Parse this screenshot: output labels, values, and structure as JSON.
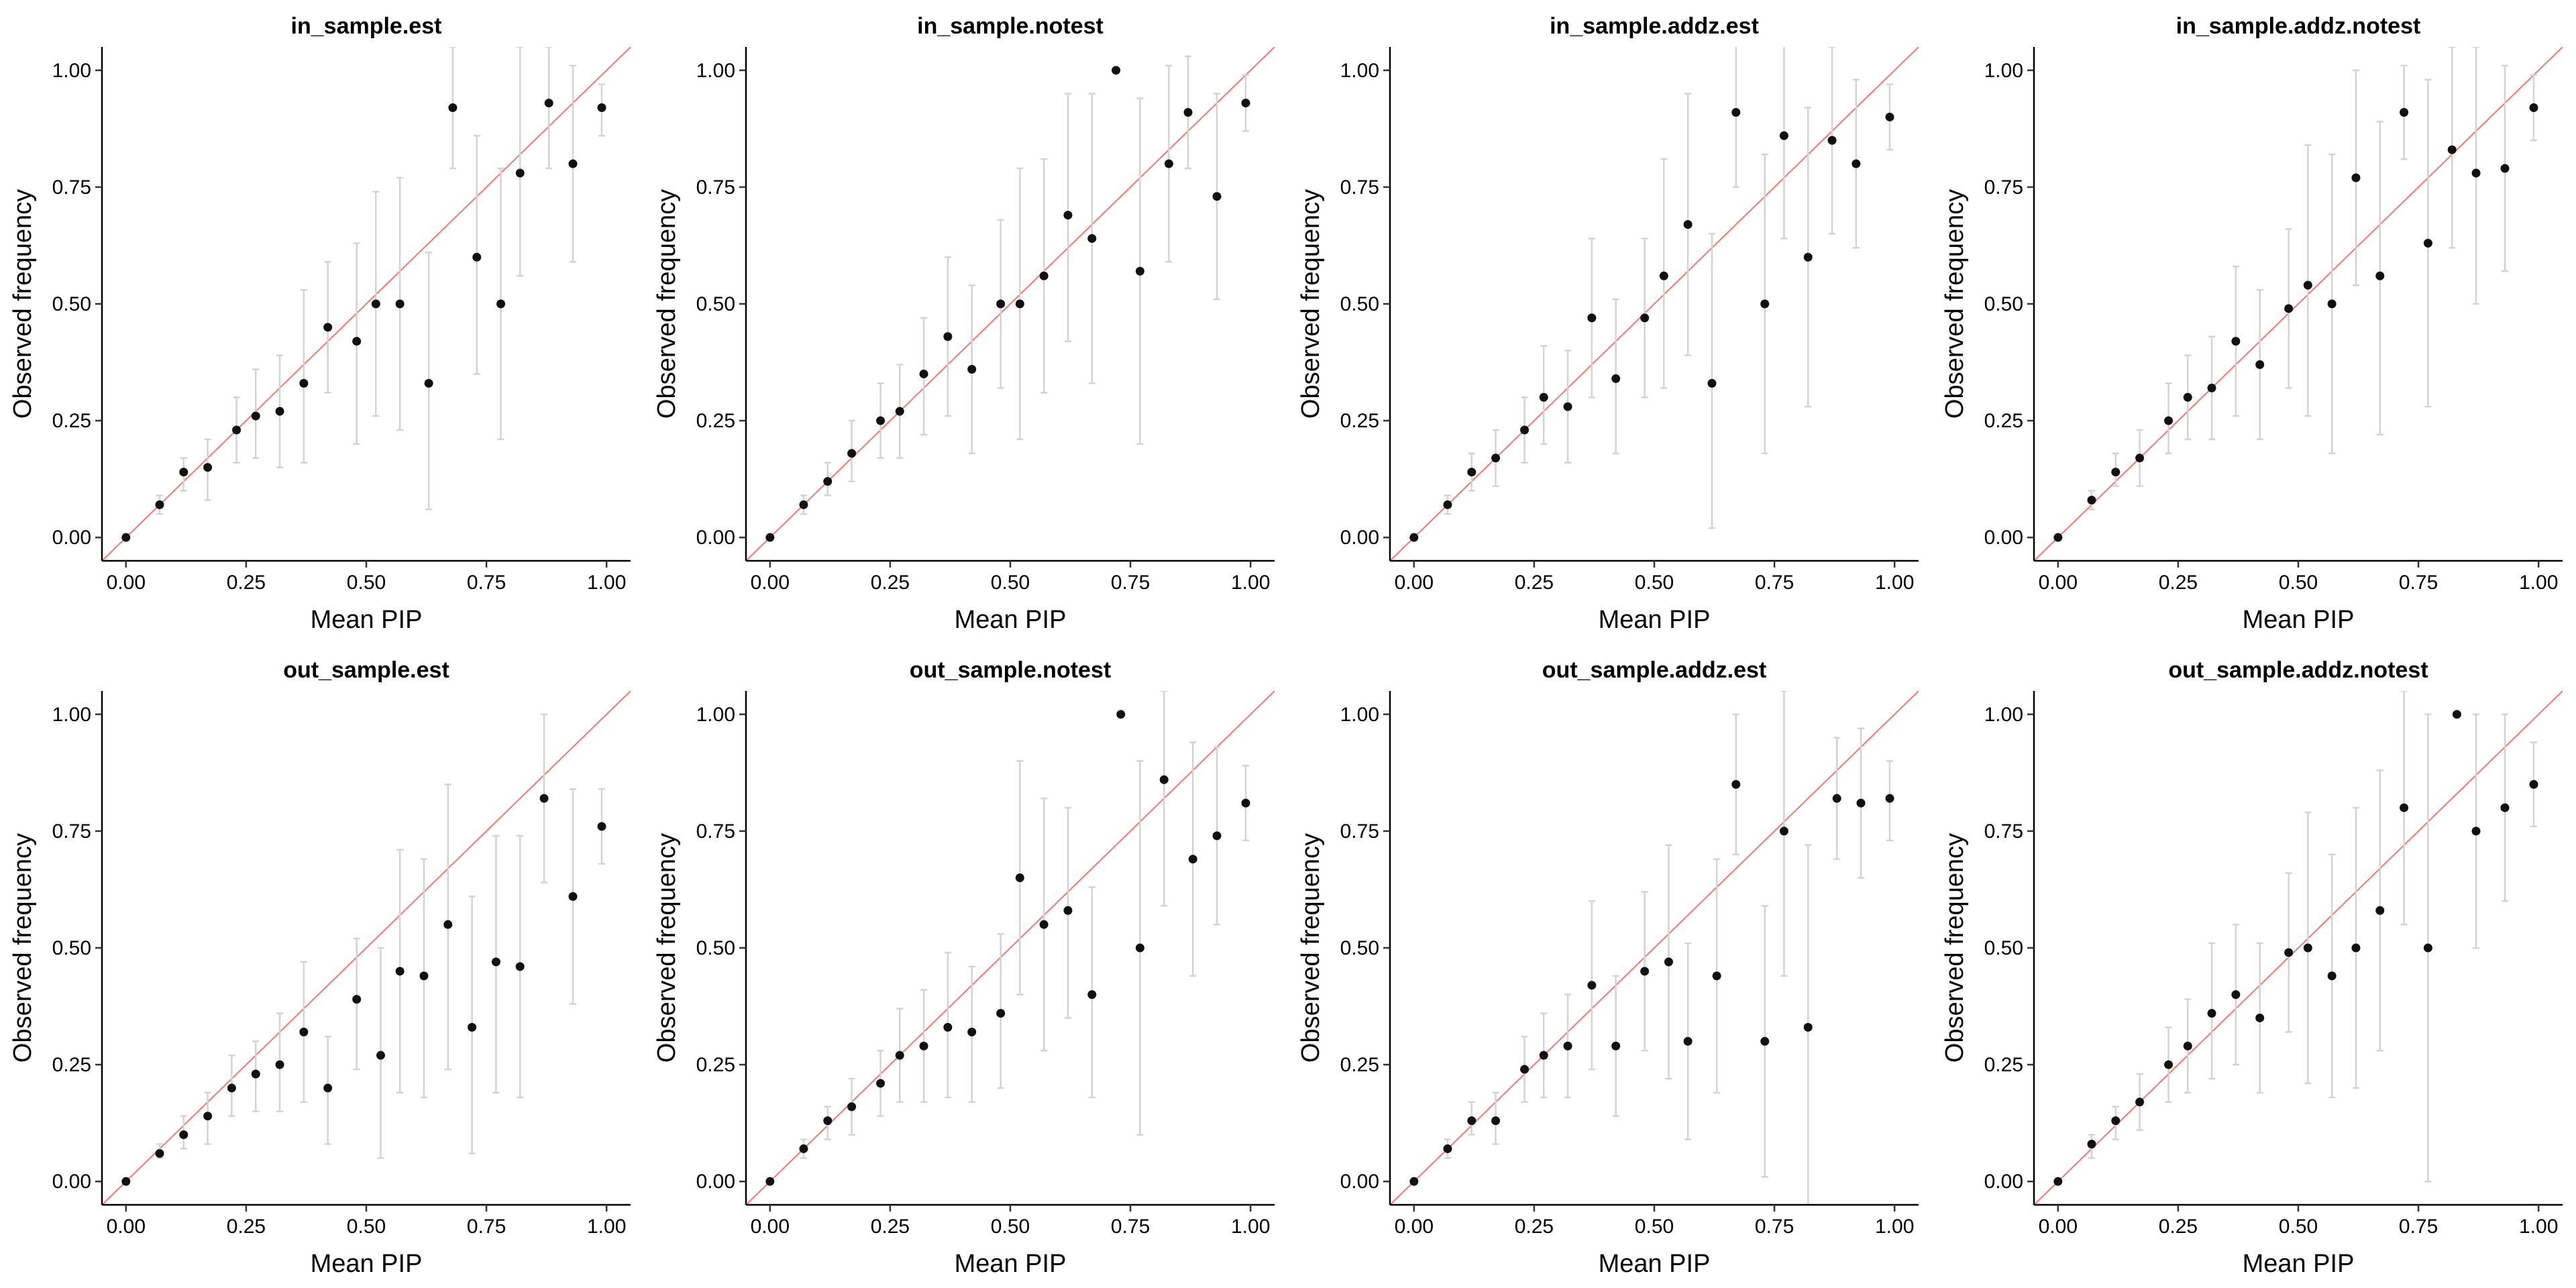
{
  "figure": {
    "xlabel": "Mean PIP",
    "ylabel": "Observed frequency",
    "x_ticks": [
      "0.00",
      "0.25",
      "0.50",
      "0.75",
      "1.00"
    ],
    "y_ticks": [
      "0.00",
      "0.25",
      "0.50",
      "0.75",
      "1.00"
    ],
    "colors": {
      "reference_line": "#f8766d",
      "point": "#111111",
      "errorbar": "#d3d3d3",
      "axis": "#000000"
    }
  },
  "chart_data": [
    {
      "type": "scatter",
      "title": "in_sample.est",
      "xlabel": "Mean PIP",
      "ylabel": "Observed frequency",
      "xlim": [
        -0.05,
        1.05
      ],
      "ylim": [
        -0.05,
        1.05
      ],
      "reference_line": "y = x",
      "x": [
        0.0,
        0.07,
        0.12,
        0.17,
        0.23,
        0.27,
        0.32,
        0.37,
        0.42,
        0.48,
        0.52,
        0.57,
        0.63,
        0.68,
        0.73,
        0.78,
        0.82,
        0.88,
        0.93,
        0.99
      ],
      "y": [
        0.0,
        0.07,
        0.14,
        0.15,
        0.23,
        0.26,
        0.27,
        0.33,
        0.45,
        0.42,
        0.5,
        0.5,
        0.33,
        0.92,
        0.6,
        0.5,
        0.78,
        0.93,
        0.8,
        0.92
      ],
      "ci_low": [
        0.0,
        0.05,
        0.1,
        0.08,
        0.16,
        0.17,
        0.15,
        0.16,
        0.31,
        0.2,
        0.26,
        0.23,
        0.06,
        0.79,
        0.35,
        0.21,
        0.56,
        0.79,
        0.59,
        0.86
      ],
      "ci_high": [
        0.0,
        0.09,
        0.17,
        0.21,
        0.3,
        0.36,
        0.39,
        0.53,
        0.59,
        0.63,
        0.74,
        0.77,
        0.61,
        1.05,
        0.86,
        0.79,
        1.05,
        1.05,
        1.01,
        0.97
      ]
    },
    {
      "type": "scatter",
      "title": "in_sample.notest",
      "xlabel": "Mean PIP",
      "ylabel": "Observed frequency",
      "xlim": [
        -0.05,
        1.05
      ],
      "ylim": [
        -0.05,
        1.05
      ],
      "reference_line": "y = x",
      "x": [
        0.0,
        0.07,
        0.12,
        0.17,
        0.23,
        0.27,
        0.32,
        0.37,
        0.42,
        0.48,
        0.52,
        0.57,
        0.62,
        0.67,
        0.72,
        0.77,
        0.83,
        0.87,
        0.93,
        0.99
      ],
      "y": [
        0.0,
        0.07,
        0.12,
        0.18,
        0.25,
        0.27,
        0.35,
        0.43,
        0.36,
        0.5,
        0.5,
        0.56,
        0.69,
        0.64,
        1.0,
        0.57,
        0.8,
        0.91,
        0.73,
        0.93
      ],
      "ci_low": [
        0.0,
        0.05,
        0.09,
        0.12,
        0.17,
        0.17,
        0.22,
        0.26,
        0.18,
        0.32,
        0.21,
        0.31,
        0.42,
        0.33,
        1.0,
        0.2,
        0.59,
        0.79,
        0.51,
        0.87
      ],
      "ci_high": [
        0.0,
        0.09,
        0.16,
        0.25,
        0.33,
        0.37,
        0.47,
        0.6,
        0.54,
        0.68,
        0.79,
        0.81,
        0.95,
        0.95,
        1.0,
        0.94,
        1.01,
        1.03,
        0.95,
        0.99
      ]
    },
    {
      "type": "scatter",
      "title": "in_sample.addz.est",
      "xlabel": "Mean PIP",
      "ylabel": "Observed frequency",
      "xlim": [
        -0.05,
        1.05
      ],
      "ylim": [
        -0.05,
        1.05
      ],
      "reference_line": "y = x",
      "x": [
        0.0,
        0.07,
        0.12,
        0.17,
        0.23,
        0.27,
        0.32,
        0.37,
        0.42,
        0.48,
        0.52,
        0.57,
        0.62,
        0.67,
        0.73,
        0.77,
        0.82,
        0.87,
        0.92,
        0.99
      ],
      "y": [
        0.0,
        0.07,
        0.14,
        0.17,
        0.23,
        0.3,
        0.28,
        0.47,
        0.34,
        0.47,
        0.56,
        0.67,
        0.33,
        0.91,
        0.5,
        0.86,
        0.6,
        0.85,
        0.8,
        0.9
      ],
      "ci_low": [
        0.0,
        0.05,
        0.1,
        0.11,
        0.16,
        0.2,
        0.16,
        0.3,
        0.18,
        0.3,
        0.32,
        0.39,
        0.02,
        0.75,
        0.18,
        0.64,
        0.28,
        0.65,
        0.62,
        0.83
      ],
      "ci_high": [
        0.0,
        0.09,
        0.18,
        0.23,
        0.3,
        0.41,
        0.4,
        0.64,
        0.51,
        0.64,
        0.81,
        0.95,
        0.65,
        1.07,
        0.82,
        1.07,
        0.92,
        1.05,
        0.98,
        0.97
      ]
    },
    {
      "type": "scatter",
      "title": "in_sample.addz.notest",
      "xlabel": "Mean PIP",
      "ylabel": "Observed frequency",
      "xlim": [
        -0.05,
        1.05
      ],
      "ylim": [
        -0.05,
        1.05
      ],
      "reference_line": "y = x",
      "x": [
        0.0,
        0.07,
        0.12,
        0.17,
        0.23,
        0.27,
        0.32,
        0.37,
        0.42,
        0.48,
        0.52,
        0.57,
        0.62,
        0.67,
        0.72,
        0.77,
        0.82,
        0.87,
        0.93,
        0.99
      ],
      "y": [
        0.0,
        0.08,
        0.14,
        0.17,
        0.25,
        0.3,
        0.32,
        0.42,
        0.37,
        0.49,
        0.54,
        0.5,
        0.77,
        0.56,
        0.91,
        0.63,
        0.83,
        0.78,
        0.79,
        0.92
      ],
      "ci_low": [
        0.0,
        0.06,
        0.11,
        0.11,
        0.18,
        0.21,
        0.21,
        0.26,
        0.21,
        0.32,
        0.26,
        0.18,
        0.54,
        0.22,
        0.81,
        0.28,
        0.62,
        0.5,
        0.57,
        0.85
      ],
      "ci_high": [
        0.0,
        0.1,
        0.18,
        0.23,
        0.33,
        0.39,
        0.43,
        0.58,
        0.53,
        0.66,
        0.84,
        0.82,
        1.0,
        0.89,
        1.01,
        0.98,
        1.05,
        1.05,
        1.01,
        0.99
      ]
    },
    {
      "type": "scatter",
      "title": "out_sample.est",
      "xlabel": "Mean PIP",
      "ylabel": "Observed frequency",
      "xlim": [
        -0.05,
        1.05
      ],
      "ylim": [
        -0.05,
        1.05
      ],
      "reference_line": "y = x",
      "x": [
        0.0,
        0.07,
        0.12,
        0.17,
        0.22,
        0.27,
        0.32,
        0.37,
        0.42,
        0.48,
        0.53,
        0.57,
        0.62,
        0.67,
        0.72,
        0.77,
        0.82,
        0.87,
        0.93,
        0.99
      ],
      "y": [
        0.0,
        0.06,
        0.1,
        0.14,
        0.2,
        0.23,
        0.25,
        0.32,
        0.2,
        0.39,
        0.27,
        0.45,
        0.44,
        0.55,
        0.33,
        0.47,
        0.46,
        0.82,
        0.61,
        0.76
      ],
      "ci_low": [
        0.0,
        0.05,
        0.07,
        0.08,
        0.14,
        0.15,
        0.15,
        0.17,
        0.08,
        0.24,
        0.05,
        0.19,
        0.18,
        0.24,
        0.06,
        0.19,
        0.18,
        0.64,
        0.38,
        0.68
      ],
      "ci_high": [
        0.0,
        0.08,
        0.14,
        0.19,
        0.27,
        0.3,
        0.36,
        0.47,
        0.31,
        0.52,
        0.5,
        0.71,
        0.69,
        0.85,
        0.61,
        0.74,
        0.74,
        1.0,
        0.84,
        0.84
      ]
    },
    {
      "type": "scatter",
      "title": "out_sample.notest",
      "xlabel": "Mean PIP",
      "ylabel": "Observed frequency",
      "xlim": [
        -0.05,
        1.05
      ],
      "ylim": [
        -0.05,
        1.05
      ],
      "reference_line": "y = x",
      "x": [
        0.0,
        0.07,
        0.12,
        0.17,
        0.23,
        0.27,
        0.32,
        0.37,
        0.42,
        0.48,
        0.52,
        0.57,
        0.62,
        0.67,
        0.73,
        0.77,
        0.82,
        0.88,
        0.93,
        0.99
      ],
      "y": [
        0.0,
        0.07,
        0.13,
        0.16,
        0.21,
        0.27,
        0.29,
        0.33,
        0.32,
        0.36,
        0.65,
        0.55,
        0.58,
        0.4,
        1.0,
        0.5,
        0.86,
        0.69,
        0.74,
        0.81
      ],
      "ci_low": [
        0.0,
        0.05,
        0.09,
        0.1,
        0.14,
        0.17,
        0.17,
        0.18,
        0.17,
        0.2,
        0.4,
        0.28,
        0.35,
        0.18,
        1.0,
        0.1,
        0.59,
        0.44,
        0.55,
        0.73
      ],
      "ci_high": [
        0.0,
        0.09,
        0.16,
        0.22,
        0.28,
        0.37,
        0.41,
        0.49,
        0.46,
        0.53,
        0.9,
        0.82,
        0.8,
        0.63,
        1.0,
        0.9,
        1.05,
        0.94,
        0.93,
        0.89
      ]
    },
    {
      "type": "scatter",
      "title": "out_sample.addz.est",
      "xlabel": "Mean PIP",
      "ylabel": "Observed frequency",
      "xlim": [
        -0.05,
        1.05
      ],
      "ylim": [
        -0.05,
        1.05
      ],
      "reference_line": "y = x",
      "x": [
        0.0,
        0.07,
        0.12,
        0.17,
        0.23,
        0.27,
        0.32,
        0.37,
        0.42,
        0.48,
        0.53,
        0.57,
        0.63,
        0.67,
        0.73,
        0.77,
        0.82,
        0.88,
        0.93,
        0.99
      ],
      "y": [
        0.0,
        0.07,
        0.13,
        0.13,
        0.24,
        0.27,
        0.29,
        0.42,
        0.29,
        0.45,
        0.47,
        0.3,
        0.44,
        0.85,
        0.3,
        0.75,
        0.33,
        0.82,
        0.81,
        0.82
      ],
      "ci_low": [
        0.0,
        0.05,
        0.1,
        0.08,
        0.17,
        0.18,
        0.18,
        0.24,
        0.14,
        0.28,
        0.22,
        0.09,
        0.19,
        0.7,
        0.01,
        0.44,
        -0.05,
        0.69,
        0.65,
        0.73
      ],
      "ci_high": [
        0.0,
        0.09,
        0.17,
        0.19,
        0.31,
        0.36,
        0.4,
        0.6,
        0.44,
        0.62,
        0.72,
        0.51,
        0.69,
        1.0,
        0.59,
        1.05,
        0.72,
        0.95,
        0.97,
        0.9
      ]
    },
    {
      "type": "scatter",
      "title": "out_sample.addz.notest",
      "xlabel": "Mean PIP",
      "ylabel": "Observed frequency",
      "xlim": [
        -0.05,
        1.05
      ],
      "ylim": [
        -0.05,
        1.05
      ],
      "reference_line": "y = x",
      "x": [
        0.0,
        0.07,
        0.12,
        0.17,
        0.23,
        0.27,
        0.32,
        0.37,
        0.42,
        0.48,
        0.52,
        0.57,
        0.62,
        0.67,
        0.72,
        0.77,
        0.83,
        0.87,
        0.93,
        0.99
      ],
      "y": [
        0.0,
        0.08,
        0.13,
        0.17,
        0.25,
        0.29,
        0.36,
        0.4,
        0.35,
        0.49,
        0.5,
        0.44,
        0.5,
        0.58,
        0.8,
        0.5,
        1.0,
        0.75,
        0.8,
        0.85
      ],
      "ci_low": [
        0.0,
        0.05,
        0.09,
        0.11,
        0.17,
        0.19,
        0.22,
        0.25,
        0.19,
        0.32,
        0.21,
        0.18,
        0.2,
        0.28,
        0.55,
        0.0,
        1.0,
        0.5,
        0.6,
        0.76
      ],
      "ci_high": [
        0.0,
        0.1,
        0.16,
        0.23,
        0.33,
        0.39,
        0.51,
        0.55,
        0.51,
        0.66,
        0.79,
        0.7,
        0.8,
        0.88,
        1.05,
        1.0,
        1.0,
        1.0,
        1.0,
        0.94
      ]
    }
  ]
}
